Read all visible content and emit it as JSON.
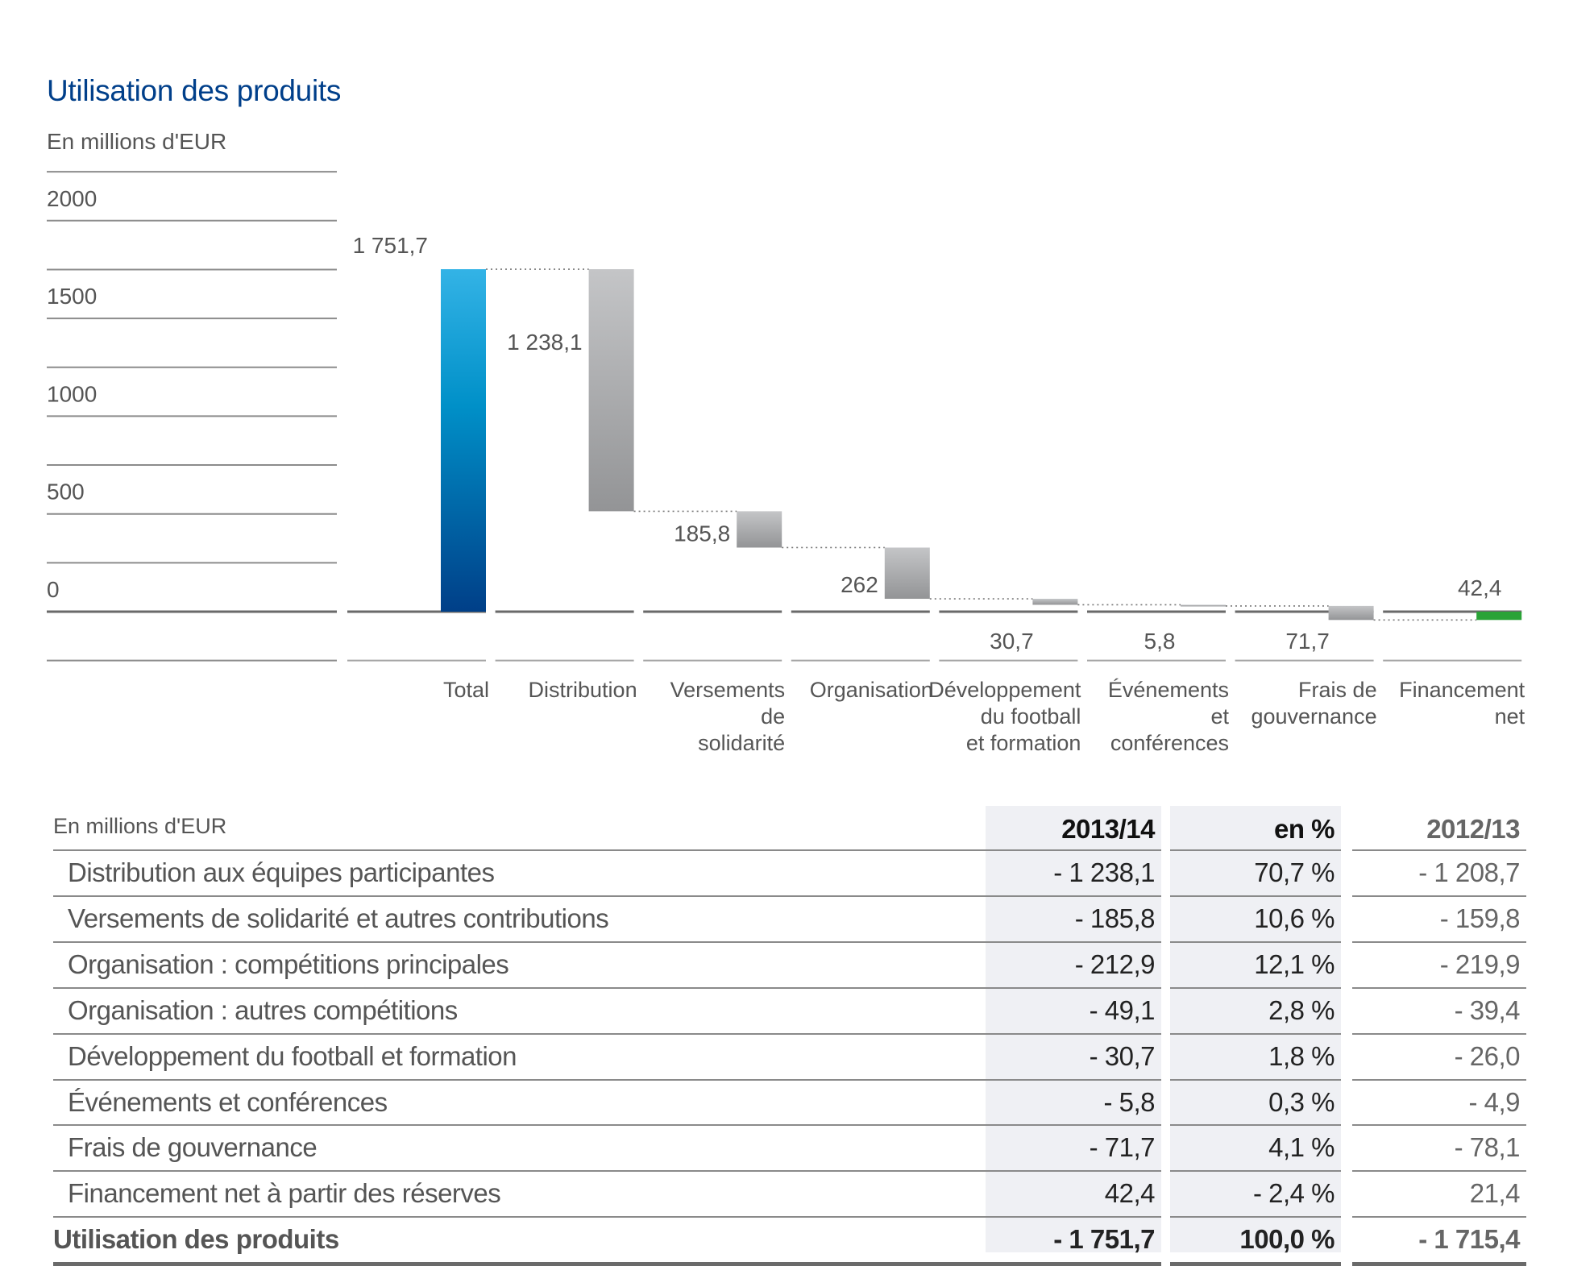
{
  "title": "Utilisation des produits",
  "unit_label": "En millions d'EUR",
  "colors": {
    "title": "#003f8a",
    "total_bar_top": "#33b3e6",
    "total_bar_mid": "#0090c8",
    "total_bar_bottom": "#003f88",
    "expense_bar_top": "#c4c5c7",
    "expense_bar_bottom": "#939496",
    "net_financing_bar": "#2aa337",
    "table_shade": "#eff0f4"
  },
  "chart_data": {
    "type": "bar",
    "subtype": "waterfall",
    "title": "Utilisation des produits",
    "ylabel": "En millions d'EUR",
    "ylim": [
      -250,
      2250
    ],
    "yticks": [
      0,
      500,
      1000,
      1500,
      2000
    ],
    "grid": true,
    "categories": [
      [
        "Total"
      ],
      [
        "Distribution"
      ],
      [
        "Versements",
        "de",
        "solidarité"
      ],
      [
        "Organisation"
      ],
      [
        "Développement",
        "du football",
        "et formation"
      ],
      [
        "Événements",
        "et",
        "conférences"
      ],
      [
        "Frais de",
        "gouvernance"
      ],
      [
        "Financement",
        "net"
      ]
    ],
    "values": [
      1751.7,
      -1238.1,
      -185.8,
      -262.0,
      -30.7,
      -5.8,
      -71.7,
      42.4
    ],
    "value_labels": [
      "1 751,7",
      "1 238,1",
      "185,8",
      "262",
      "30,7",
      "5,8",
      "71,7",
      "42,4"
    ],
    "bar_kinds": [
      "total",
      "expense",
      "expense",
      "expense",
      "expense",
      "expense",
      "expense",
      "net"
    ]
  },
  "table": {
    "unit_label": "En millions d'EUR",
    "headers": [
      "2013/14",
      "en %",
      "2012/13"
    ],
    "rows": [
      {
        "label": "Distribution aux équipes participantes",
        "v1": "- 1 238,1",
        "pct": "70,7 %",
        "v0": "- 1 208,7"
      },
      {
        "label": "Versements de solidarité et autres contributions",
        "v1": "- 185,8",
        "pct": "10,6 %",
        "v0": "- 159,8"
      },
      {
        "label": "Organisation : compétitions principales",
        "v1": "- 212,9",
        "pct": "12,1 %",
        "v0": "- 219,9"
      },
      {
        "label": "Organisation : autres compétitions",
        "v1": "- 49,1",
        "pct": "2,8 %",
        "v0": "- 39,4"
      },
      {
        "label": "Développement du football et formation",
        "v1": "- 30,7",
        "pct": "1,8 %",
        "v0": "- 26,0"
      },
      {
        "label": "Événements et conférences",
        "v1": "- 5,8",
        "pct": "0,3 %",
        "v0": "- 4,9"
      },
      {
        "label": "Frais de gouvernance",
        "v1": "- 71,7",
        "pct": "4,1 %",
        "v0": "- 78,1"
      },
      {
        "label": "Financement net à partir des réserves",
        "v1": "42,4",
        "pct": "- 2,4 %",
        "v0": "21,4"
      }
    ],
    "total": {
      "label": "Utilisation des produits",
      "v1": "- 1 751,7",
      "pct": "100,0 %",
      "v0": "- 1 715,4"
    }
  }
}
